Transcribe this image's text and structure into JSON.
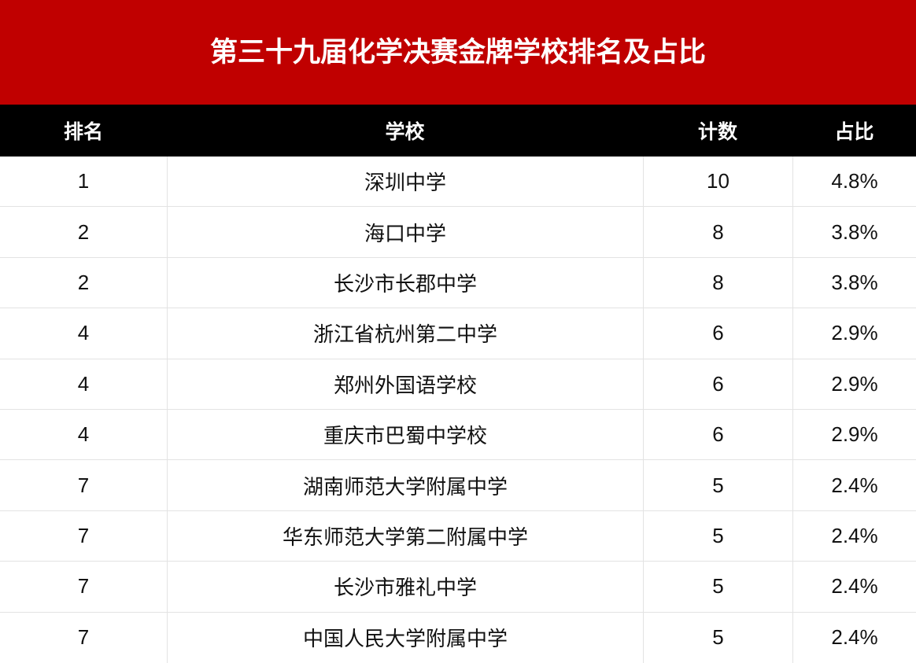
{
  "title": "第三十九届化学决赛金牌学校排名及占比",
  "colors": {
    "title_bg": "#C00000",
    "header_bg": "#000000",
    "header_text": "#FFFFFF",
    "row_border": "#E3E3E3",
    "body_text": "#111111"
  },
  "table": {
    "columns": [
      "排名",
      "学校",
      "计数",
      "占比"
    ],
    "rows": [
      [
        "1",
        "深圳中学",
        "10",
        "4.8%"
      ],
      [
        "2",
        "海口中学",
        "8",
        "3.8%"
      ],
      [
        "2",
        "长沙市长郡中学",
        "8",
        "3.8%"
      ],
      [
        "4",
        "浙江省杭州第二中学",
        "6",
        "2.9%"
      ],
      [
        "4",
        "郑州外国语学校",
        "6",
        "2.9%"
      ],
      [
        "4",
        "重庆市巴蜀中学校",
        "6",
        "2.9%"
      ],
      [
        "7",
        "湖南师范大学附属中学",
        "5",
        "2.4%"
      ],
      [
        "7",
        "华东师范大学第二附属中学",
        "5",
        "2.4%"
      ],
      [
        "7",
        "长沙市雅礼中学",
        "5",
        "2.4%"
      ],
      [
        "7",
        "中国人民大学附属中学",
        "5",
        "2.4%"
      ]
    ]
  },
  "chart_data": {
    "type": "table",
    "title": "第三十九届化学决赛金牌学校排名及占比",
    "columns": [
      "排名",
      "学校",
      "计数",
      "占比"
    ],
    "rows": [
      {
        "rank": 1,
        "school": "深圳中学",
        "count": 10,
        "share": "4.8%"
      },
      {
        "rank": 2,
        "school": "海口中学",
        "count": 8,
        "share": "3.8%"
      },
      {
        "rank": 2,
        "school": "长沙市长郡中学",
        "count": 8,
        "share": "3.8%"
      },
      {
        "rank": 4,
        "school": "浙江省杭州第二中学",
        "count": 6,
        "share": "2.9%"
      },
      {
        "rank": 4,
        "school": "郑州外国语学校",
        "count": 6,
        "share": "2.9%"
      },
      {
        "rank": 4,
        "school": "重庆市巴蜀中学校",
        "count": 6,
        "share": "2.9%"
      },
      {
        "rank": 7,
        "school": "湖南师范大学附属中学",
        "count": 5,
        "share": "2.4%"
      },
      {
        "rank": 7,
        "school": "华东师范大学第二附属中学",
        "count": 5,
        "share": "2.4%"
      },
      {
        "rank": 7,
        "school": "长沙市雅礼中学",
        "count": 5,
        "share": "2.4%"
      },
      {
        "rank": 7,
        "school": "中国人民大学附属中学",
        "count": 5,
        "share": "2.4%"
      }
    ]
  }
}
